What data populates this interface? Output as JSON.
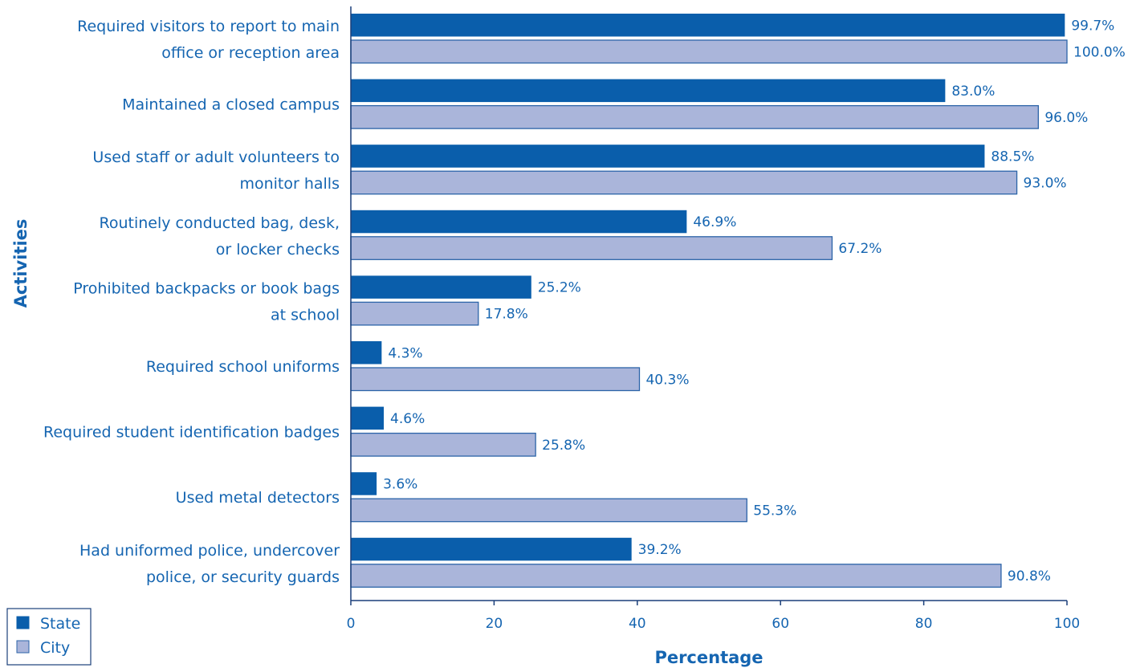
{
  "colors": {
    "state": "#0a5eab",
    "city": "#aab5da",
    "city_border": "#2c64a8",
    "text": "#1565b1",
    "axis": "#1a3f7a"
  },
  "legend": [
    {
      "name": "State",
      "color_key": "state"
    },
    {
      "name": "City",
      "color_key": "city"
    }
  ],
  "chart_data": {
    "type": "bar",
    "orientation": "horizontal",
    "categories": [
      [
        "Required visitors to report to main",
        "office or reception area"
      ],
      [
        "Maintained a closed campus"
      ],
      [
        "Used staff or adult volunteers to",
        "monitor halls"
      ],
      [
        "Routinely conducted bag, desk,",
        "or locker checks"
      ],
      [
        "Prohibited backpacks or book bags",
        "at school"
      ],
      [
        "Required school uniforms"
      ],
      [
        "Required student identification badges"
      ],
      [
        "Used metal detectors"
      ],
      [
        "Had uniformed police, undercover",
        "police, or security guards"
      ]
    ],
    "series": [
      {
        "name": "State",
        "values": [
          99.7,
          83.0,
          88.5,
          46.9,
          25.2,
          4.3,
          4.6,
          3.6,
          39.2
        ],
        "labels": [
          "99.7%",
          "83.0%",
          "88.5%",
          "46.9%",
          "25.2%",
          "4.3%",
          "4.6%",
          "3.6%",
          "39.2%"
        ]
      },
      {
        "name": "City",
        "values": [
          100.0,
          96.0,
          93.0,
          67.2,
          17.8,
          40.3,
          25.8,
          55.3,
          90.8
        ],
        "labels": [
          "100.0%",
          "96.0%",
          "93.0%",
          "67.2%",
          "17.8%",
          "40.3%",
          "25.8%",
          "55.3%",
          "90.8%"
        ]
      }
    ],
    "xlabel": "Percentage",
    "ylabel": "Activities",
    "xlim": [
      0,
      100
    ],
    "xticks": [
      0,
      20,
      40,
      60,
      80,
      100
    ],
    "xtick_labels": [
      "0",
      "20",
      "40",
      "60",
      "80",
      "100"
    ],
    "grid": false,
    "legend_position": "bottom-left"
  }
}
